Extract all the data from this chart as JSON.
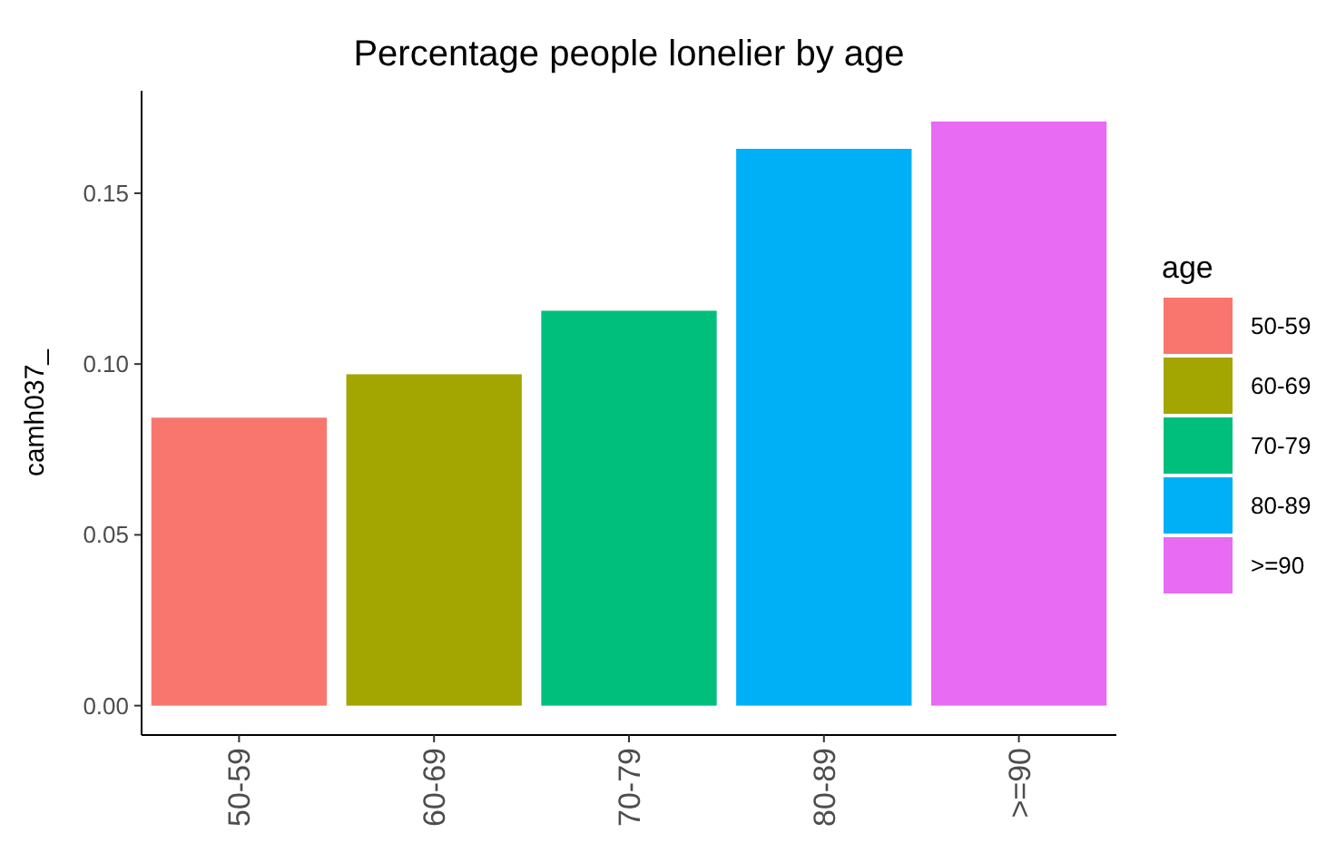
{
  "chart_data": {
    "type": "bar",
    "title": "Percentage people lonelier by age",
    "ylabel": "camh037_",
    "legend_title": "age",
    "categories": [
      "50-59",
      "60-69",
      "70-79",
      "80-89",
      ">=90"
    ],
    "series": [
      {
        "name": "50-59",
        "color": "#f8766d",
        "values": [
          0.0843,
          null,
          null,
          null,
          null
        ]
      },
      {
        "name": "60-69",
        "color": "#a3a500",
        "values": [
          null,
          0.097,
          null,
          null,
          null
        ]
      },
      {
        "name": "70-79",
        "color": "#00bf7d",
        "values": [
          null,
          null,
          0.1156,
          null,
          null
        ]
      },
      {
        "name": "80-89",
        "color": "#00b0f6",
        "values": [
          null,
          null,
          null,
          0.163,
          null
        ]
      },
      {
        "name": ">=90",
        "color": "#e76bf3",
        "values": [
          null,
          null,
          null,
          null,
          0.171
        ]
      }
    ],
    "stacked": true,
    "ylim": [
      -0.0086,
      0.18
    ],
    "yticks": [
      {
        "value": 0,
        "label": "0.00"
      },
      {
        "value": 0.05,
        "label": "0.05"
      },
      {
        "value": 0.1,
        "label": "0.10"
      },
      {
        "value": 0.15,
        "label": "0.15"
      }
    ],
    "grid": false,
    "legend": "right"
  }
}
